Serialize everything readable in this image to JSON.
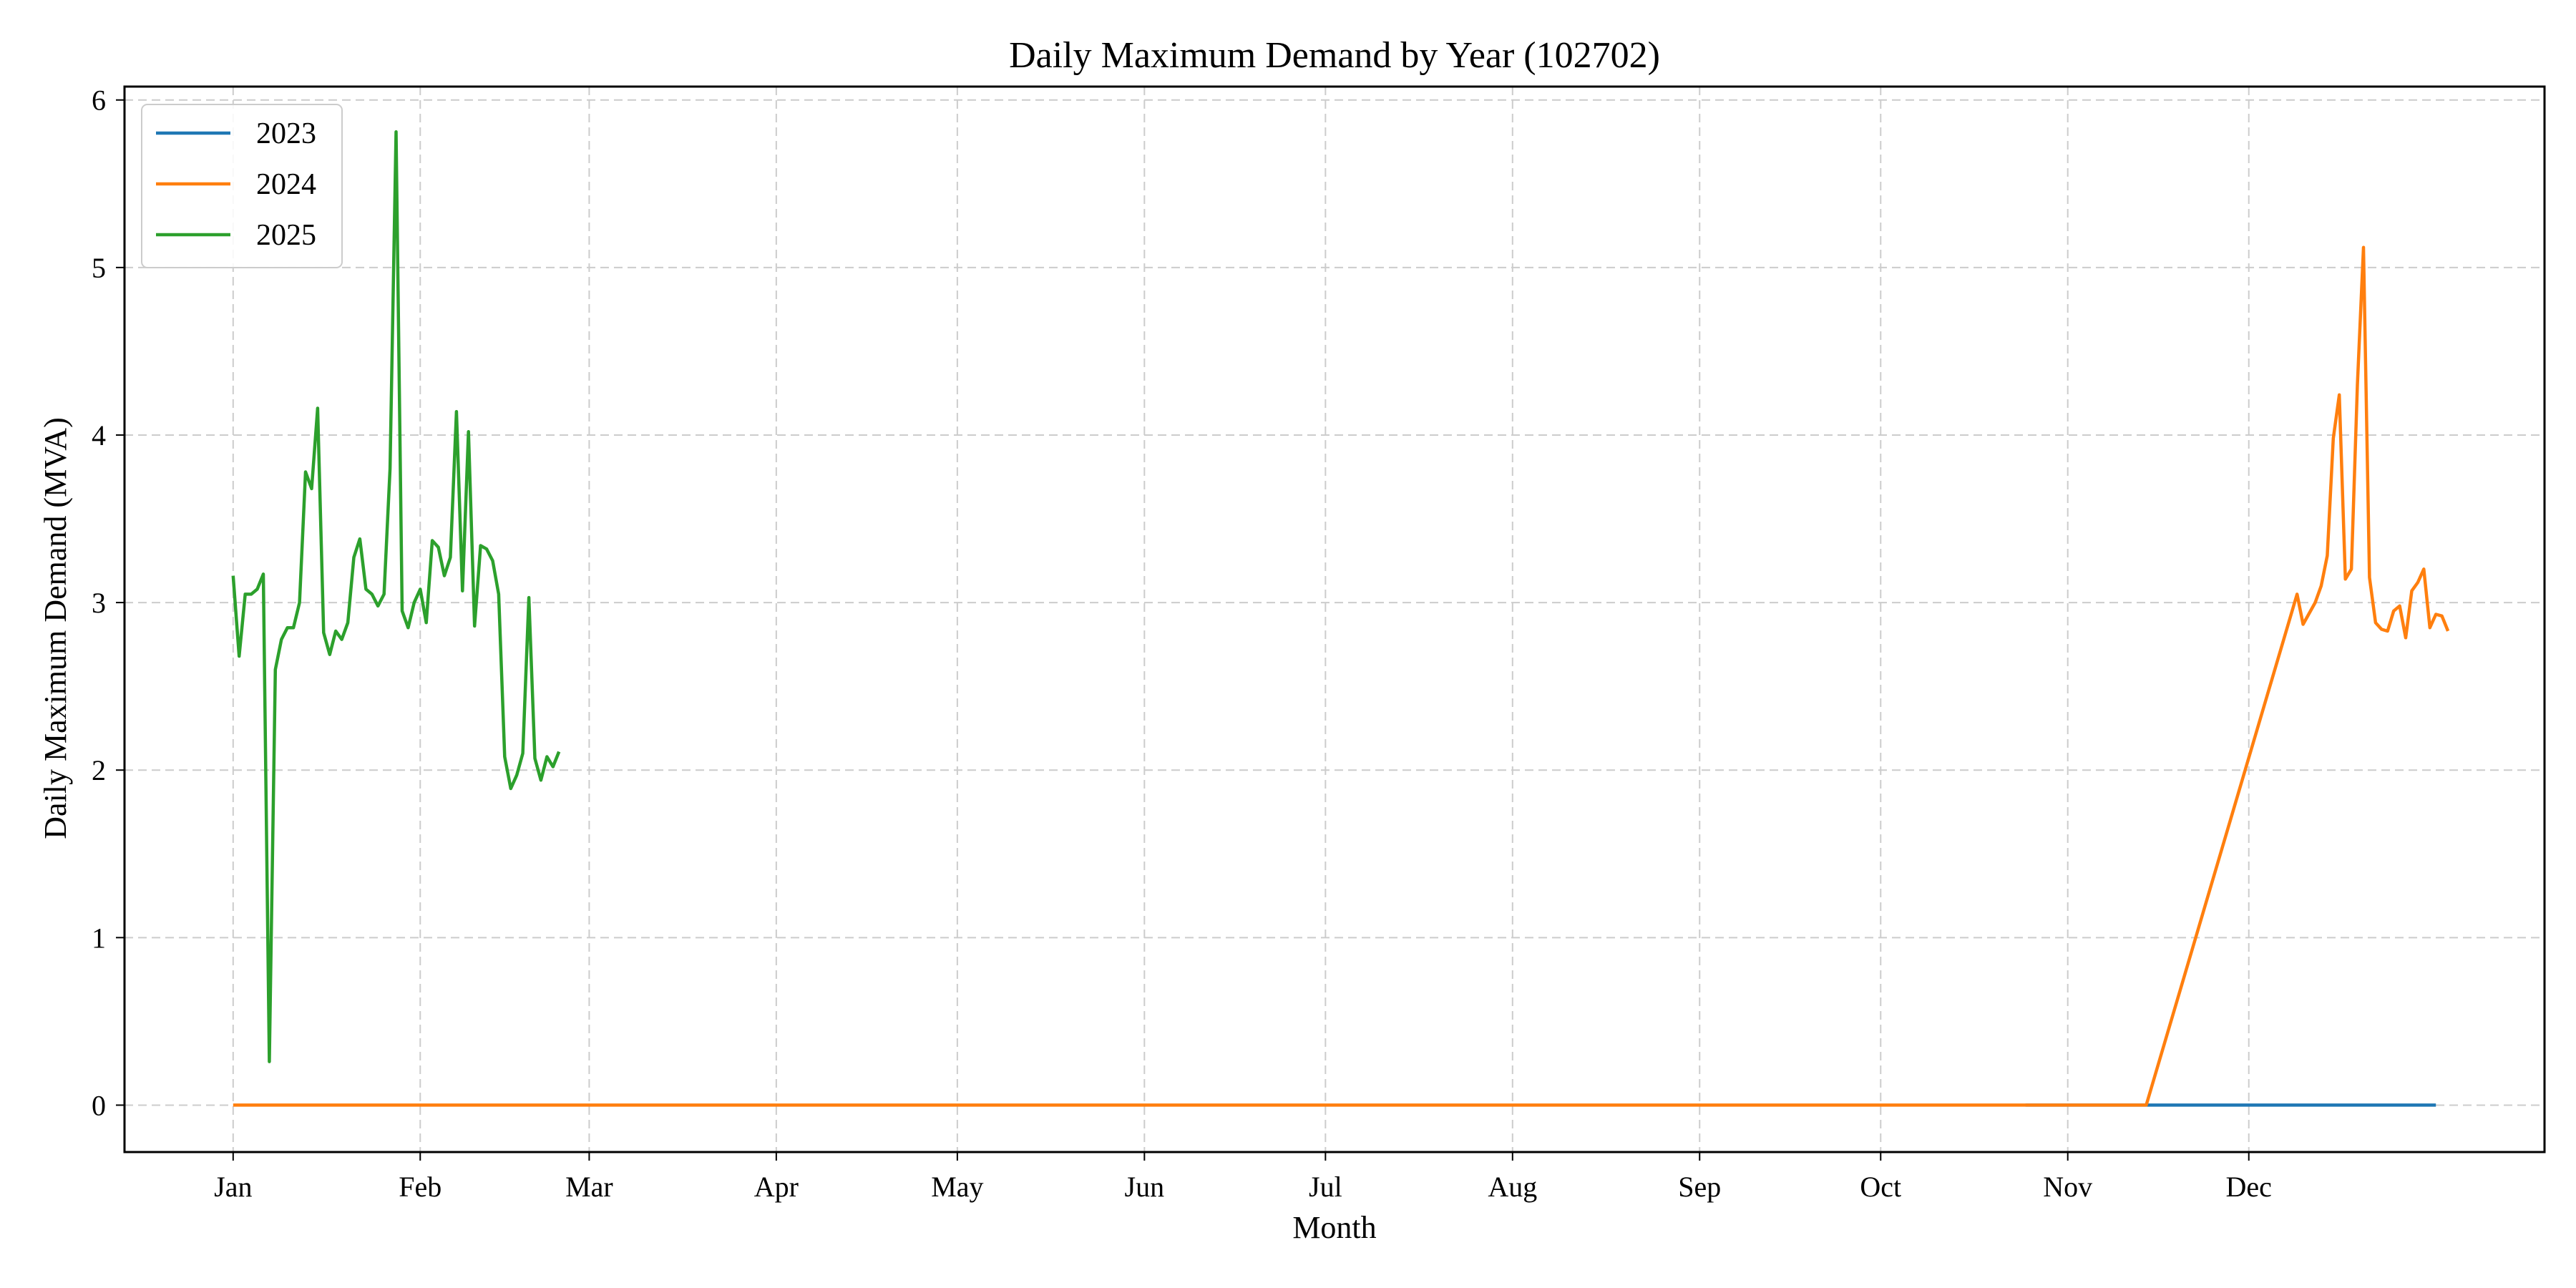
{
  "chart_data": {
    "type": "line",
    "title": "Daily Maximum Demand by Year (102702)",
    "xlabel": "Month",
    "ylabel": "Daily Maximum Demand (MVA)",
    "x_axis": "day of year",
    "x_ticks": [
      {
        "label": "Jan",
        "value": 1
      },
      {
        "label": "Feb",
        "value": 32
      },
      {
        "label": "Mar",
        "value": 60
      },
      {
        "label": "Apr",
        "value": 91
      },
      {
        "label": "May",
        "value": 121
      },
      {
        "label": "Jun",
        "value": 152
      },
      {
        "label": "Jul",
        "value": 182
      },
      {
        "label": "Aug",
        "value": 213
      },
      {
        "label": "Sep",
        "value": 244
      },
      {
        "label": "Oct",
        "value": 274
      },
      {
        "label": "Nov",
        "value": 305
      },
      {
        "label": "Dec",
        "value": 335
      }
    ],
    "xlim": [
      -17,
      384
    ],
    "ylim": [
      -0.28,
      6.08
    ],
    "y_ticks": [
      0,
      1,
      2,
      3,
      4,
      5,
      6
    ],
    "grid": true,
    "legend_position": "top-left",
    "series": [
      {
        "name": "2023",
        "color": "#1f77b4",
        "points": [
          [
            298,
            0
          ],
          [
            366,
            0
          ]
        ]
      },
      {
        "name": "2024",
        "color": "#ff7f0e",
        "points": [
          [
            1,
            0
          ],
          [
            295,
            0
          ],
          [
            298,
            0
          ],
          [
            318,
            0
          ],
          [
            343,
            3.05
          ],
          [
            344,
            2.87
          ],
          [
            346,
            3.0
          ],
          [
            347,
            3.1
          ],
          [
            348,
            3.28
          ],
          [
            349,
            3.98
          ],
          [
            350,
            4.24
          ],
          [
            351,
            3.14
          ],
          [
            352,
            3.2
          ],
          [
            353,
            4.3
          ],
          [
            354,
            5.12
          ],
          [
            355,
            3.15
          ],
          [
            356,
            2.88
          ],
          [
            357,
            2.84
          ],
          [
            358,
            2.83
          ],
          [
            359,
            2.95
          ],
          [
            360,
            2.98
          ],
          [
            361,
            2.79
          ],
          [
            362,
            3.07
          ],
          [
            363,
            3.12
          ],
          [
            364,
            3.2
          ],
          [
            365,
            2.85
          ],
          [
            366,
            2.93
          ],
          [
            367,
            2.92
          ],
          [
            368,
            2.83
          ]
        ]
      },
      {
        "name": "2025",
        "color": "#2ca02c",
        "points": [
          [
            1,
            3.16
          ],
          [
            2,
            2.68
          ],
          [
            3,
            3.05
          ],
          [
            4,
            3.05
          ],
          [
            5,
            3.08
          ],
          [
            6,
            3.17
          ],
          [
            7,
            0.26
          ],
          [
            8,
            2.6
          ],
          [
            9,
            2.78
          ],
          [
            10,
            2.85
          ],
          [
            11,
            2.85
          ],
          [
            12,
            3.0
          ],
          [
            13,
            3.78
          ],
          [
            14,
            3.68
          ],
          [
            15,
            4.16
          ],
          [
            16,
            2.82
          ],
          [
            17,
            2.69
          ],
          [
            18,
            2.83
          ],
          [
            19,
            2.78
          ],
          [
            20,
            2.88
          ],
          [
            21,
            3.27
          ],
          [
            22,
            3.38
          ],
          [
            23,
            3.08
          ],
          [
            24,
            3.05
          ],
          [
            25,
            2.98
          ],
          [
            26,
            3.05
          ],
          [
            27,
            3.8
          ],
          [
            28,
            5.81
          ],
          [
            29,
            2.95
          ],
          [
            30,
            2.85
          ],
          [
            31,
            3.0
          ],
          [
            32,
            3.08
          ],
          [
            33,
            2.88
          ],
          [
            34,
            3.37
          ],
          [
            35,
            3.33
          ],
          [
            36,
            3.16
          ],
          [
            37,
            3.27
          ],
          [
            38,
            4.14
          ],
          [
            39,
            3.07
          ],
          [
            40,
            4.02
          ],
          [
            41,
            2.86
          ],
          [
            42,
            3.34
          ],
          [
            43,
            3.32
          ],
          [
            44,
            3.25
          ],
          [
            45,
            3.05
          ],
          [
            46,
            2.08
          ],
          [
            47,
            1.89
          ],
          [
            48,
            1.97
          ],
          [
            49,
            2.1
          ],
          [
            50,
            3.03
          ],
          [
            51,
            2.07
          ],
          [
            52,
            1.94
          ],
          [
            53,
            2.08
          ],
          [
            54,
            2.02
          ],
          [
            55,
            2.11
          ]
        ]
      }
    ]
  }
}
